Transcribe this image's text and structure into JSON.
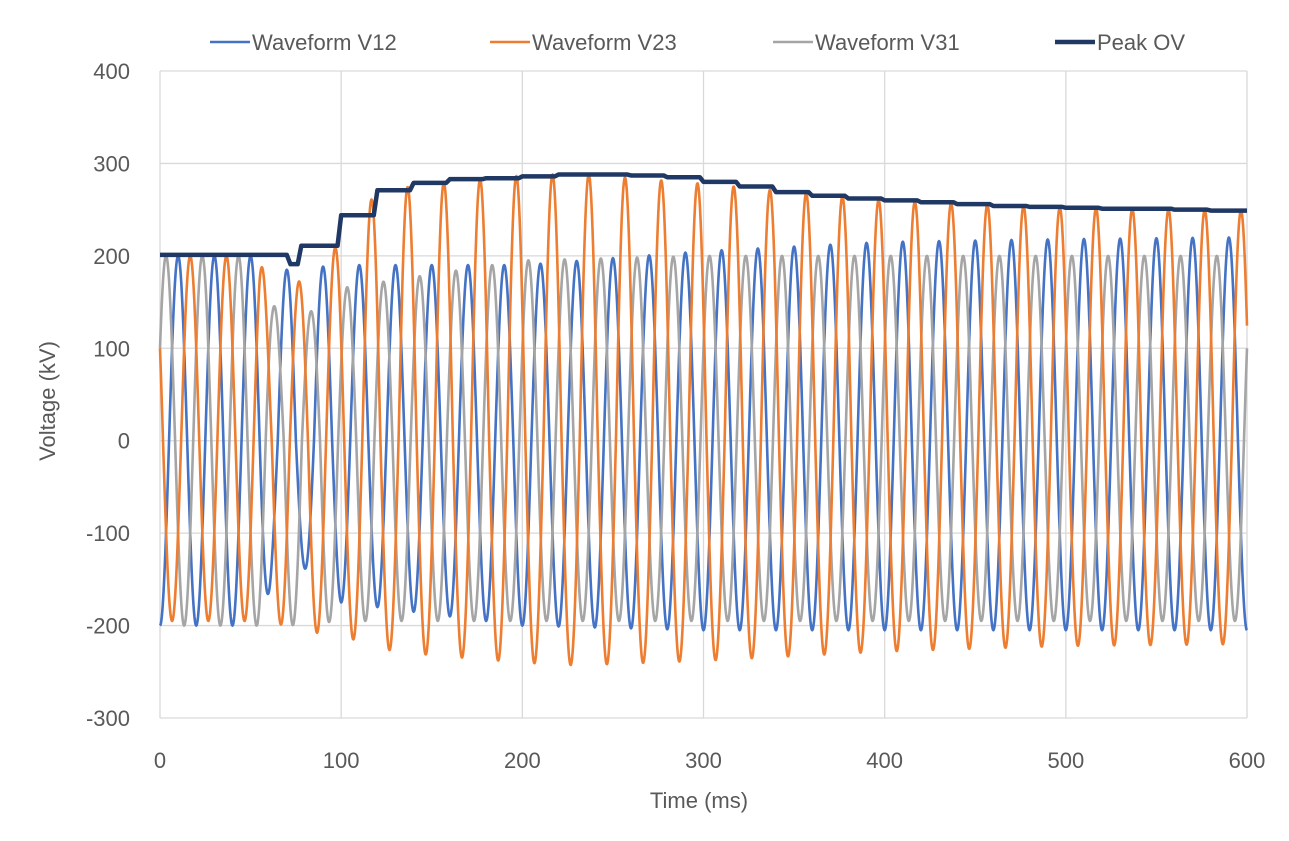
{
  "chart_data": {
    "type": "line",
    "xlabel": "Time (ms)",
    "ylabel": "Voltage (kV)",
    "xlim": [
      0,
      600
    ],
    "ylim": [
      -300,
      400
    ],
    "xticks": [
      "0",
      "100",
      "200",
      "300",
      "400",
      "500",
      "600"
    ],
    "yticks": [
      "400",
      "300",
      "200",
      "100",
      "0",
      "-100",
      "-200",
      "-300"
    ],
    "grid": true,
    "legend_position": "top",
    "frequency_hz": 50,
    "series": [
      {
        "name": "Waveform V12",
        "color": "#4472C4",
        "kind": "waveform",
        "phase_deg": -90,
        "envelope_t": [
          0,
          55,
          62,
          70,
          100,
          200,
          300,
          400,
          500,
          600
        ],
        "envelope_hi": [
          200,
          200,
          185,
          185,
          190,
          190,
          205,
          215,
          218,
          220
        ],
        "envelope_lo": [
          -200,
          -200,
          -150,
          -120,
          -175,
          -200,
          -205,
          -205,
          -205,
          -205
        ]
      },
      {
        "name": "Waveform V23",
        "color": "#ED7D31",
        "kind": "waveform",
        "phase_deg": 150,
        "envelope_t": [
          0,
          55,
          62,
          70,
          100,
          120,
          150,
          200,
          230,
          300,
          400,
          500,
          600
        ],
        "envelope_hi": [
          200,
          200,
          140,
          160,
          215,
          270,
          278,
          287,
          289,
          278,
          260,
          252,
          249
        ],
        "envelope_lo": [
          -195,
          -195,
          -190,
          -205,
          -210,
          -225,
          -232,
          -240,
          -243,
          -238,
          -228,
          -222,
          -220
        ]
      },
      {
        "name": "Waveform V31",
        "color": "#A5A5A5",
        "kind": "waveform",
        "phase_deg": 30,
        "envelope_t": [
          0,
          55,
          62,
          70,
          100,
          200,
          300,
          400,
          500,
          600
        ],
        "envelope_hi": [
          200,
          200,
          150,
          120,
          165,
          195,
          200,
          200,
          200,
          200
        ],
        "envelope_lo": [
          -200,
          -200,
          -190,
          -200,
          -195,
          -195,
          -195,
          -195,
          -195,
          -195
        ]
      },
      {
        "name": "Peak OV",
        "color": "#203864",
        "kind": "step",
        "x": [
          0,
          70,
          72,
          76,
          78,
          98,
          100,
          118,
          120,
          138,
          140,
          158,
          160,
          178,
          180,
          198,
          200,
          218,
          220,
          238,
          240,
          258,
          260,
          278,
          280,
          298,
          300,
          318,
          320,
          338,
          340,
          358,
          360,
          378,
          380,
          398,
          400,
          418,
          420,
          438,
          440,
          458,
          460,
          478,
          480,
          498,
          500,
          518,
          520,
          538,
          540,
          558,
          560,
          578,
          580,
          598,
          600
        ],
        "y": [
          201,
          201,
          191,
          191,
          211,
          211,
          244,
          244,
          271,
          271,
          279,
          279,
          283,
          283,
          284,
          284,
          286,
          286,
          288,
          288,
          288,
          288,
          287,
          287,
          285,
          285,
          280,
          280,
          275,
          275,
          269,
          269,
          265,
          265,
          262,
          262,
          260,
          260,
          258,
          258,
          256,
          256,
          254,
          254,
          253,
          253,
          252,
          252,
          251,
          251,
          251,
          251,
          250,
          250,
          249,
          249,
          249
        ]
      }
    ]
  }
}
